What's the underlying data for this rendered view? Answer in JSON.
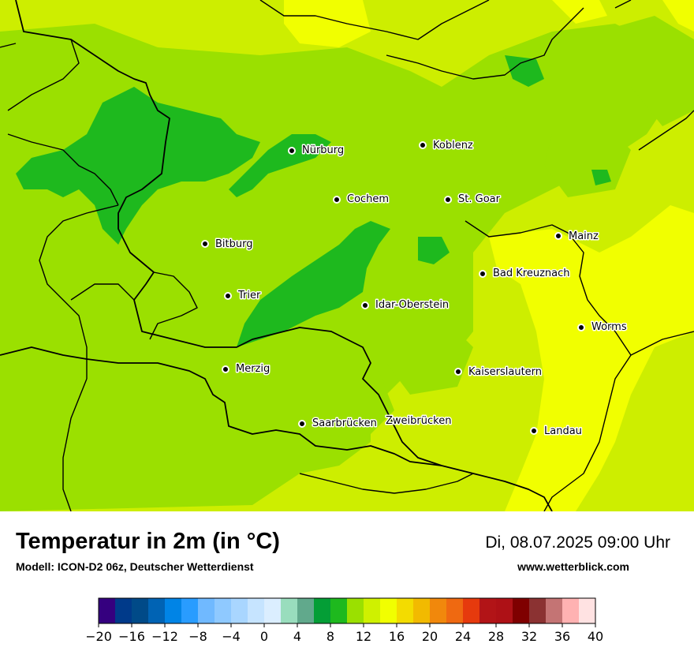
{
  "header": {
    "title": "Temperatur in 2m (in °C)",
    "model": "Modell: ICON-D2 06z, Deutscher Wetterdienst",
    "datetime": "Di, 08.07.2025 09:00 Uhr",
    "website": "www.wetterblick.com"
  },
  "cities": {
    "nuerburg": "Nürburg",
    "koblenz": "Koblenz",
    "cochem": "Cochem",
    "st_goar": "St. Goar",
    "mainz": "Mainz",
    "bitburg": "Bitburg",
    "bad_kreuznach": "Bad Kreuznach",
    "trier": "Trier",
    "idar_oberstein": "Idar-Oberstein",
    "worms": "Worms",
    "merzig": "Merzig",
    "kaiserslautern": "Kaiserslautern",
    "saarbruecken": "Saarbrücken",
    "zweibruecken": "Zweibrücken",
    "landau": "Landau"
  },
  "legend": {
    "colors": [
      "#35007f",
      "#003a8a",
      "#004a88",
      "#0063b4",
      "#0084e6",
      "#299cff",
      "#70b9ff",
      "#8fc9ff",
      "#a9d6ff",
      "#c6e4ff",
      "#dbeeff",
      "#99ddbd",
      "#61a98c",
      "#049e36",
      "#1eb91e",
      "#9be000",
      "#cff100",
      "#f1ff00",
      "#f3dc00",
      "#f2ba00",
      "#f1880c",
      "#ef6911",
      "#e63a0d",
      "#b21417",
      "#ae1116",
      "#7f0000",
      "#8b3232",
      "#c47474",
      "#ffb2b2",
      "#ffe2e2"
    ],
    "ticks": [
      "−20",
      "−16",
      "−12",
      "−8",
      "−4",
      "0",
      "4",
      "8",
      "12",
      "16",
      "20",
      "24",
      "28",
      "32",
      "36",
      "40"
    ]
  }
}
